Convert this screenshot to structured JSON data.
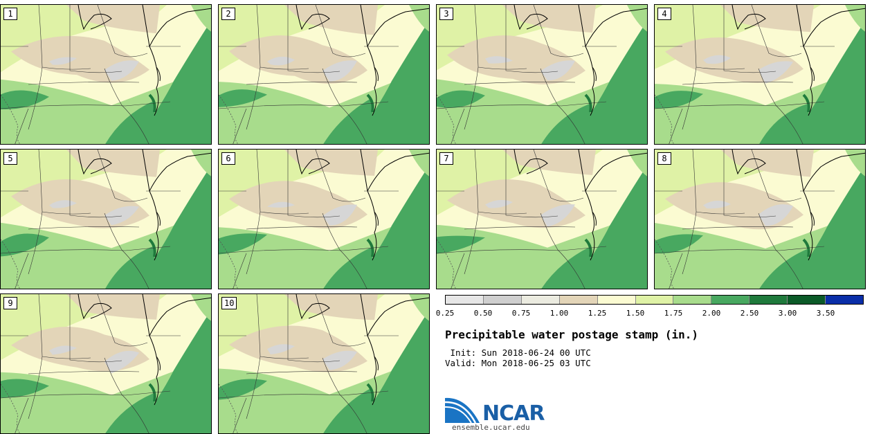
{
  "panels": [
    {
      "number": "1"
    },
    {
      "number": "2"
    },
    {
      "number": "3"
    },
    {
      "number": "4"
    },
    {
      "number": "5"
    },
    {
      "number": "6"
    },
    {
      "number": "7"
    },
    {
      "number": "8"
    },
    {
      "number": "9"
    },
    {
      "number": "10"
    }
  ],
  "colorbar": {
    "colors": [
      "#e6e6e6",
      "#cfcfcf",
      "#ebebe0",
      "#e3d5b8",
      "#fbfbd2",
      "#dff2a6",
      "#a8dc8c",
      "#48a860",
      "#1f7a3c",
      "#0b5a28",
      "#0a2ea8"
    ],
    "ticks": [
      "0.25",
      "0.50",
      "0.75",
      "1.00",
      "1.25",
      "1.50",
      "1.75",
      "2.00",
      "2.50",
      "3.00",
      "3.50"
    ]
  },
  "field_colors": {
    "dry": "#e3d5b8",
    "very_dry": "#d6d6d6",
    "mid": "#fbfbd2",
    "light_green": "#dff2a6",
    "green": "#a8dc8c",
    "dark_green": "#48a860",
    "darker_green": "#1f7a3c"
  },
  "title": "Precipitable water postage stamp (in.)",
  "init_line": " Init: Sun 2018-06-24 00 UTC",
  "valid_line": "Valid: Mon 2018-06-25 03 UTC",
  "logo": {
    "name": "NCAR",
    "site": "ensemble.ucar.edu"
  }
}
